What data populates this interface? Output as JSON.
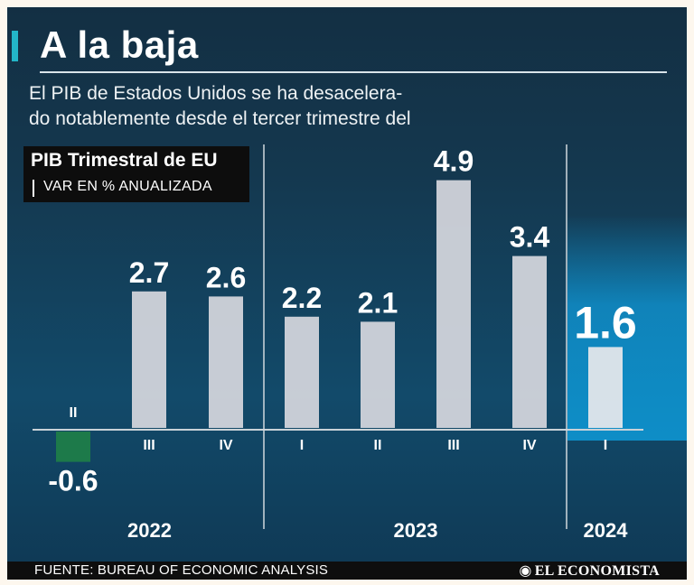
{
  "header": {
    "title": "A la baja",
    "subtitle_line1": "El PIB de Estados Unidos se ha desacelera-",
    "subtitle_line2": "do notablemente desde el tercer trimestre del"
  },
  "legend": {
    "title": "PIB Trimestral de EU",
    "unit": "VAR EN % ANUALIZADA"
  },
  "colors": {
    "positive_bar": "#d7d8de",
    "negative_bar": "#1d7a4a",
    "highlight_bar": "#e8e8ec",
    "text": "#ffffff"
  },
  "chart_data": {
    "type": "bar",
    "title": "PIB Trimestral de EU",
    "ylabel": "VAR EN % ANUALIZADA",
    "ylim": [
      -1,
      5.5
    ],
    "categories": [
      "II",
      "III",
      "IV",
      "I",
      "II",
      "III",
      "IV",
      "I"
    ],
    "years": [
      "2022",
      "2022",
      "2022",
      "2023",
      "2023",
      "2023",
      "2023",
      "2024"
    ],
    "value_labels": [
      "-0.6",
      "2.7",
      "2.6",
      "2.2",
      "2.1",
      "4.9",
      "3.4",
      "1.6"
    ],
    "values": [
      -0.6,
      2.7,
      2.6,
      2.2,
      2.1,
      4.9,
      3.4,
      1.6
    ],
    "highlight_index": 7,
    "year_groups": [
      {
        "label": "2022",
        "from": 0,
        "to": 2
      },
      {
        "label": "2023",
        "from": 3,
        "to": 6
      },
      {
        "label": "2024",
        "from": 7,
        "to": 7
      }
    ]
  },
  "footer": {
    "source": "FUENTE: BUREAU OF ECONOMIC ANALYSIS",
    "brand": "EL ECONOMISTA",
    "brand_icon": "globe-icon"
  }
}
